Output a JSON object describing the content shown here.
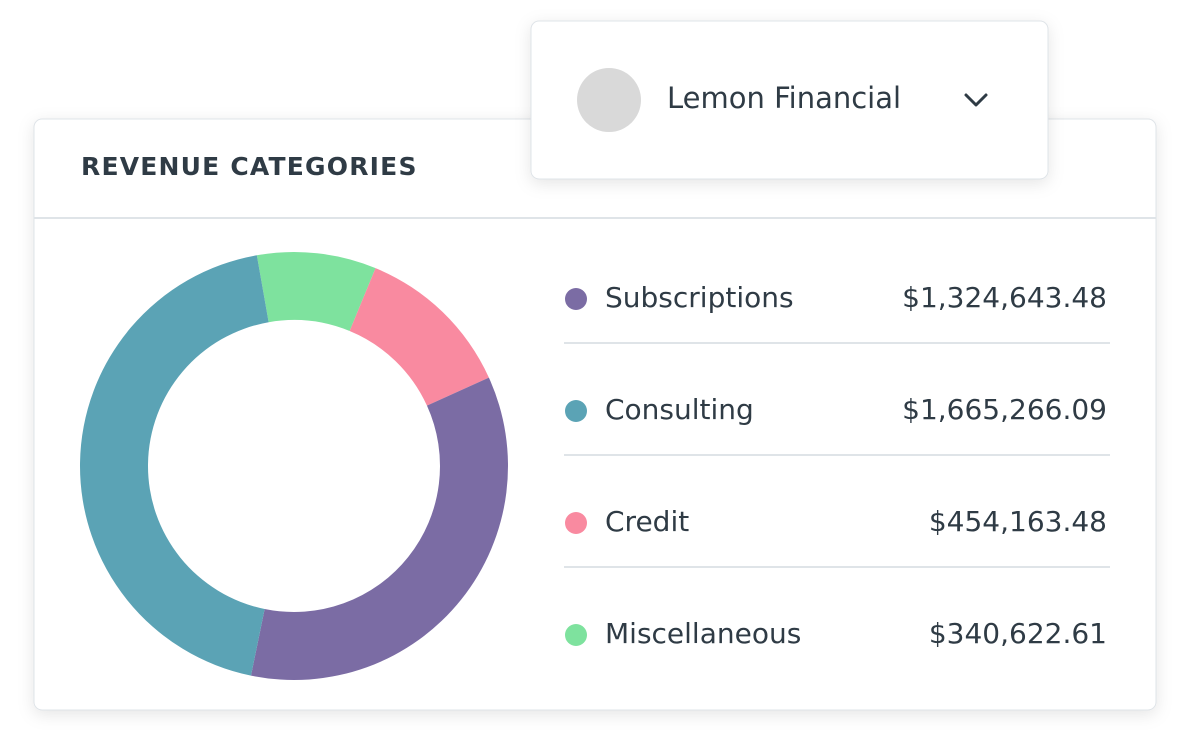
{
  "dropdown": {
    "label": "Lemon Financial"
  },
  "chart_data": {
    "type": "donut",
    "title": "REVENUE CATEGORIES",
    "categories": [
      "Subscriptions",
      "Consulting",
      "Credit",
      "Miscellaneous"
    ],
    "values": [
      1324643.48,
      1665266.09,
      454163.48,
      340622.61
    ],
    "value_labels": [
      "$1,324,643.48",
      "$1,665,266.09",
      "$454,163.48",
      "$340,622.61"
    ],
    "colors": [
      "#7b6ca4",
      "#5ba3b5",
      "#f98aa0",
      "#7ee29e"
    ]
  }
}
